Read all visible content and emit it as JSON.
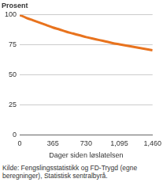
{
  "chart_data": {
    "type": "line",
    "ylabel": "Prosent",
    "xlabel": "Dager siden løslatelsen",
    "source": "Kilde: Fengslingsstatistikk og FD-Trygd (egne beregninger), Statistisk sentralbyrå.",
    "x": [
      0,
      73,
      146,
      219,
      292,
      365,
      438,
      511,
      584,
      657,
      730,
      803,
      876,
      949,
      1022,
      1095,
      1168,
      1241,
      1314,
      1387,
      1460
    ],
    "values": [
      100,
      97.5,
      95.5,
      93.5,
      91.5,
      89.5,
      87.8,
      86,
      84.5,
      83,
      81.5,
      80.2,
      79,
      77.8,
      76.5,
      75.5,
      74.5,
      73.5,
      72.5,
      71.5,
      70.5
    ],
    "color": "#e8731e",
    "xlim": [
      0,
      1460
    ],
    "xticks": [
      0,
      365,
      730,
      1095,
      1460
    ],
    "ylim": [
      0,
      100
    ],
    "yticks": [
      0,
      25,
      50,
      75,
      100
    ],
    "grid": true
  }
}
